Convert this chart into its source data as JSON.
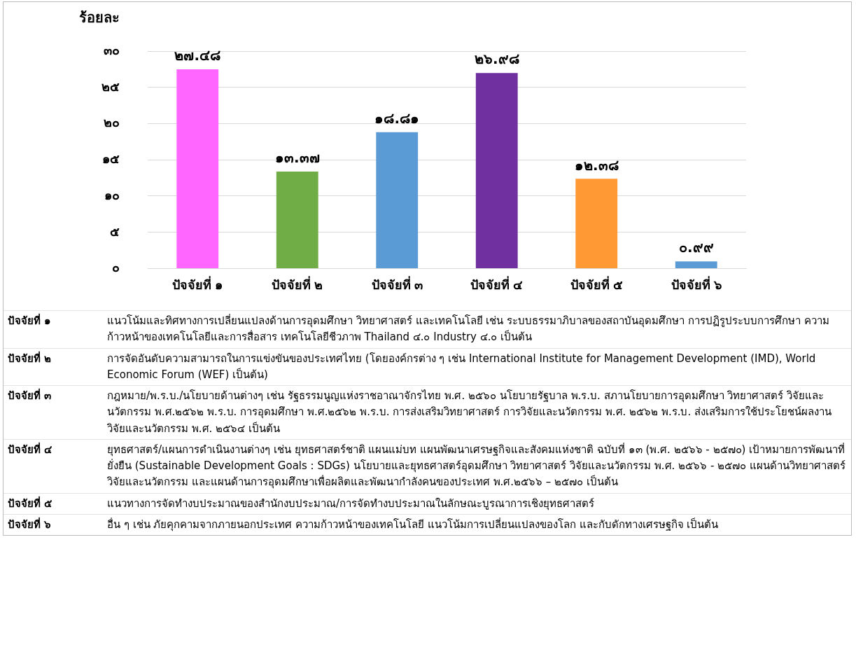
{
  "chart_data": {
    "type": "bar",
    "ylabel": "ร้อยละ",
    "categories": [
      "ปัจจัยที่ ๑",
      "ปัจจัยที่ ๒",
      "ปัจจัยที่ ๓",
      "ปัจจัยที่ ๔",
      "ปัจจัยที่ ๕",
      "ปัจจัยที่ ๖"
    ],
    "values": [
      27.48,
      13.37,
      18.81,
      26.98,
      12.38,
      0.99
    ],
    "colors": [
      "#ff66ff",
      "#70ad47",
      "#5b9bd5",
      "#7030a0",
      "#ff9933",
      "#5b9bd5"
    ],
    "value_labels": [
      "๒๗.๔๘",
      "๑๓.๓๗",
      "๑๘.๘๑",
      "๒๖.๙๘",
      "๑๒.๓๘",
      "๐.๙๙"
    ],
    "ylim": [
      0,
      30
    ],
    "yticks": [
      {
        "value": 0,
        "label": "๐"
      },
      {
        "value": 5,
        "label": "๕"
      },
      {
        "value": 10,
        "label": "๑๐"
      },
      {
        "value": 15,
        "label": "๑๕"
      },
      {
        "value": 20,
        "label": "๒๐"
      },
      {
        "value": 25,
        "label": "๒๕"
      },
      {
        "value": 30,
        "label": "๓๐"
      }
    ],
    "grid": "y",
    "annotations": [
      "แนวโน้มและทิศทางการเปลี่ยนแปลงด้านการอุดมศึกษา วิทยาศาสตร์ และเทคโนโลยี เช่น ระบบธรรมาภิบาลของสถาบันอุดมศึกษา การปฏิรูประบบการศึกษา ความก้าวหน้าของเทคโนโลยีและการสื่อสาร เทคโนโลยีชีวภาพ Thailand ๔.๐ Industry ๔.๐ เป็นต้น",
      "การจัดอันดับความสามารถในการแข่งขันของประเทศไทย (โดยองค์กรต่าง ๆ เช่น International Institute for Management Development (IMD), World Economic Forum (WEF) เป็นต้น)",
      "กฎหมาย/พ.ร.บ./นโยบายด้านต่างๆ เช่น รัฐธรรมนูญแห่งราชอาณาจักรไทย พ.ศ. ๒๕๖๐ นโยบายรัฐบาล พ.ร.บ. สภานโยบายการอุดมศึกษา วิทยาศาสตร์ วิจัยและนวัตกรรม พ.ศ.๒๕๖๒ พ.ร.บ. การอุดมศึกษา พ.ศ.๒๕๖๒ พ.ร.บ. การส่งเสริมวิทยาศาสตร์ การวิจัยและนวัตกรรม พ.ศ. ๒๕๖๒ พ.ร.บ. ส่งเสริมการใช้ประโยชน์ผลงานวิจัยและนวัตกรรม พ.ศ. ๒๕๖๔ เป็นต้น",
      "ยุทธศาสตร์/แผนการดำเนินงานต่างๆ เช่น ยุทธศาสตร์ชาติ แผนแม่บท แผนพัฒนาเศรษฐกิจและสังคมแห่งชาติ ฉบับที่ ๑๓ (พ.ศ. ๒๕๖๖ - ๒๕๗๐) เป้าหมายการพัฒนาที่ยั่งยืน (Sustainable Development Goals : SDGs) นโยบายและยุทธศาสตร์อุดมศึกษา วิทยาศาสตร์ วิจัยและนวัตกรรม พ.ศ. ๒๕๖๖ - ๒๕๗๐ แผนด้านวิทยาศาสตร์ วิจัยและนวัตกรรม และแผนด้านการอุดมศึกษาเพื่อผลิตและพัฒนากำลังคนของประเทศ พ.ศ.๒๕๖๖ – ๒๕๗๐ เป็นต้น",
      "แนวทางการจัดทำงบประมาณของสำนักงบประมาณ/การจัดทำงบประมาณในลักษณะบูรณาการเชิงยุทธศาสตร์",
      "อื่น ๆ เช่น ภัยคุกคามจากภายนอกประเทศ ความก้าวหน้าของเทคโนโลยี แนวโน้มการเปลี่ยนแปลงของโลก และกับดักทางเศรษฐกิจ เป็นต้น"
    ]
  }
}
